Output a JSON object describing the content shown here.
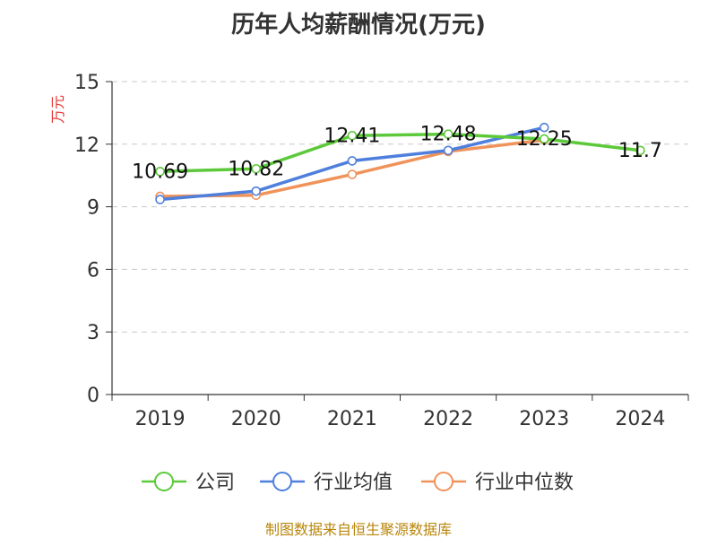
{
  "chart_data": {
    "type": "line",
    "title": "历年人均薪酬情况(万元)",
    "ylabel": "万元",
    "xlabel": "",
    "ylim": [
      0,
      15
    ],
    "yticks": [
      0,
      3,
      6,
      9,
      12,
      15
    ],
    "grid": true,
    "legend_position": "bottom",
    "categories": [
      "2019",
      "2020",
      "2021",
      "2022",
      "2023",
      "2024"
    ],
    "series": [
      {
        "name": "公司",
        "values": [
          10.69,
          10.82,
          12.41,
          12.48,
          12.25,
          11.7
        ],
        "color": "#5cc93a",
        "labeled": true
      },
      {
        "name": "行业均值",
        "values": [
          9.35,
          9.75,
          11.2,
          11.7,
          12.8,
          null
        ],
        "color": "#4f7fdc",
        "labeled": false
      },
      {
        "name": "行业中位数",
        "values": [
          9.5,
          9.55,
          10.55,
          11.65,
          12.2,
          null
        ],
        "color": "#f0935a",
        "labeled": false
      }
    ],
    "footer": "制图数据来自恒生聚源数据库"
  }
}
